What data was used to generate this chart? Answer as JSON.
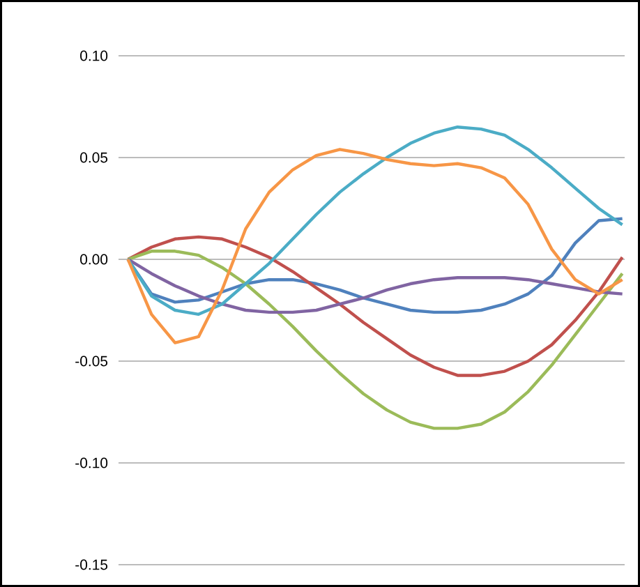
{
  "chart_data": {
    "type": "line",
    "categories": [
      null,
      null,
      null,
      null,
      null,
      null,
      null,
      null,
      null,
      null,
      null,
      null,
      null,
      null,
      null,
      null,
      null,
      null,
      null,
      null,
      null,
      null
    ],
    "series": [
      {
        "color": "#4f81bd",
        "values": [
          0,
          -0.017,
          -0.021,
          -0.02,
          -0.016,
          -0.012,
          -0.01,
          -0.01,
          -0.012,
          -0.015,
          -0.019,
          -0.022,
          -0.025,
          -0.026,
          -0.026,
          -0.025,
          -0.022,
          -0.017,
          -0.008,
          0.008,
          0.019,
          0.02
        ]
      },
      {
        "color": "#c0504d",
        "values": [
          0,
          0.006,
          0.01,
          0.011,
          0.01,
          0.006,
          0.001,
          -0.006,
          -0.014,
          -0.022,
          -0.031,
          -0.039,
          -0.047,
          -0.053,
          -0.057,
          -0.057,
          -0.055,
          -0.05,
          -0.042,
          -0.03,
          -0.016,
          0.001
        ]
      },
      {
        "color": "#9bbb59",
        "values": [
          0,
          0.004,
          0.004,
          0.002,
          -0.004,
          -0.012,
          -0.022,
          -0.033,
          -0.045,
          -0.056,
          -0.066,
          -0.074,
          -0.08,
          -0.083,
          -0.083,
          -0.081,
          -0.075,
          -0.065,
          -0.052,
          -0.037,
          -0.022,
          -0.007
        ]
      },
      {
        "color": "#8064a2",
        "values": [
          0,
          -0.007,
          -0.013,
          -0.018,
          -0.022,
          -0.025,
          -0.026,
          -0.026,
          -0.025,
          -0.022,
          -0.019,
          -0.015,
          -0.012,
          -0.01,
          -0.009,
          -0.009,
          -0.009,
          -0.01,
          -0.012,
          -0.014,
          -0.016,
          -0.017
        ]
      },
      {
        "color": "#4bacc6",
        "values": [
          0,
          -0.018,
          -0.025,
          -0.027,
          -0.022,
          -0.012,
          -0.002,
          0.01,
          0.022,
          0.033,
          0.042,
          0.05,
          0.057,
          0.062,
          0.065,
          0.064,
          0.061,
          0.054,
          0.045,
          0.035,
          0.025,
          0.017
        ]
      },
      {
        "color": "#f79646",
        "values": [
          0,
          -0.027,
          -0.041,
          -0.038,
          -0.015,
          0.015,
          0.033,
          0.044,
          0.051,
          0.054,
          0.052,
          0.049,
          0.047,
          0.046,
          0.047,
          0.045,
          0.04,
          0.027,
          0.005,
          -0.01,
          -0.017,
          -0.01
        ]
      }
    ],
    "ylim": [
      -0.15,
      0.1
    ],
    "yticks": [
      {
        "value": -0.15,
        "label": "-0.15"
      },
      {
        "value": -0.1,
        "label": "-0.10"
      },
      {
        "value": -0.05,
        "label": "-0.05"
      },
      {
        "value": 0,
        "label": "0.00"
      },
      {
        "value": 0.05,
        "label": "0.05"
      },
      {
        "value": 0.1,
        "label": "0.10"
      }
    ],
    "grid": "y",
    "tick_labels": "y",
    "marker": "none",
    "line_style": "solid"
  }
}
